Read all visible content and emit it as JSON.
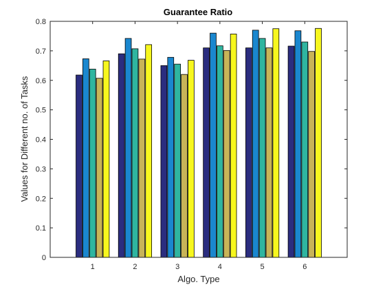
{
  "chart_data": {
    "type": "bar",
    "title": "Guarantee Ratio",
    "xlabel": "Algo. Type",
    "ylabel": "Values for Different no. of Tasks",
    "categories": [
      "1",
      "2",
      "3",
      "4",
      "5",
      "6"
    ],
    "ylim": [
      0,
      0.8
    ],
    "yticks": [
      "0",
      "0.1",
      "0.2",
      "0.3",
      "0.4",
      "0.5",
      "0.6",
      "0.7",
      "0.8"
    ],
    "grid": false,
    "legend": "none",
    "series": [
      {
        "color": "#2b2d7f",
        "values": [
          0.618,
          0.69,
          0.65,
          0.71,
          0.71,
          0.716
        ]
      },
      {
        "color": "#1a87cf",
        "values": [
          0.673,
          0.742,
          0.678,
          0.76,
          0.77,
          0.768
        ]
      },
      {
        "color": "#2fb5a0",
        "values": [
          0.638,
          0.707,
          0.655,
          0.717,
          0.742,
          0.73
        ]
      },
      {
        "color": "#c8b458",
        "values": [
          0.607,
          0.672,
          0.62,
          0.701,
          0.71,
          0.698
        ]
      },
      {
        "color": "#f7f71e",
        "values": [
          0.666,
          0.721,
          0.668,
          0.757,
          0.775,
          0.776
        ]
      }
    ]
  }
}
